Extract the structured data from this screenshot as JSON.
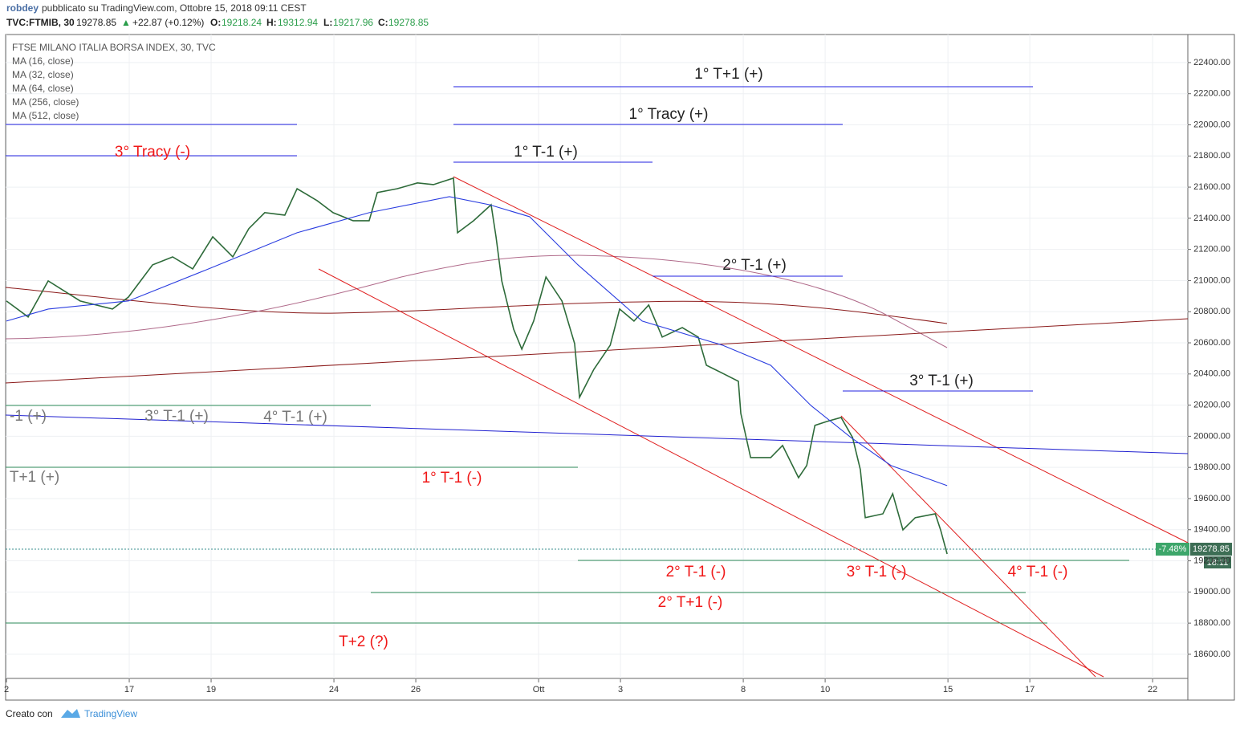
{
  "header": {
    "author": "robdey",
    "published": "pubblicato su TradingView.com, Ottobre 15, 2018 09:11 CEST",
    "symbol": "TVC:FTMIB, 30",
    "last": "19278.85",
    "arrow": "▲",
    "change": "+22.87 (+0.12%)",
    "o_label": "O:",
    "open": "19218.24",
    "h_label": "H:",
    "high": "19312.94",
    "l_label": "L:",
    "low": "19217.96",
    "c_label": "C:",
    "close": "19278.85"
  },
  "legend": {
    "title": "FTSE MILANO ITALIA BORSA INDEX, 30, TVC",
    "items": [
      "MA (16, close)",
      "MA (32, close)",
      "MA (64, close)",
      "MA (256, close)",
      "MA (512, close)"
    ]
  },
  "price_tag": {
    "price": "19278.85",
    "pct": "-7.48%",
    "countdown": "18:11"
  },
  "footer": {
    "made_with": "Creato con",
    "brand": "TradingView"
  },
  "chart_data": {
    "type": "line",
    "ylim": [
      18316,
      22580
    ],
    "yticks": [
      {
        "value": 18600,
        "label": "18600.00"
      },
      {
        "value": 18800,
        "label": "18800.00"
      },
      {
        "value": 19000,
        "label": "19000.00"
      },
      {
        "value": 19200,
        "label": "19200.00"
      },
      {
        "value": 19400,
        "label": "19400.00"
      },
      {
        "value": 19600,
        "label": "19600.00"
      },
      {
        "value": 19800,
        "label": "19800.00"
      },
      {
        "value": 20000,
        "label": "20000.00"
      },
      {
        "value": 20200,
        "label": "20200.00"
      },
      {
        "value": 20400,
        "label": "20400.00"
      },
      {
        "value": 20600,
        "label": "20600.00"
      },
      {
        "value": 20800,
        "label": "20800.00"
      },
      {
        "value": 21000,
        "label": "21000.00"
      },
      {
        "value": 21200,
        "label": "21200.00"
      },
      {
        "value": 21400,
        "label": "21400.00"
      },
      {
        "value": 21600,
        "label": "21600.00"
      },
      {
        "value": 21800,
        "label": "21800.00"
      },
      {
        "value": 22000,
        "label": "22000.00"
      },
      {
        "value": 22200,
        "label": "22200.00"
      },
      {
        "value": 22400,
        "label": "22400.00"
      }
    ],
    "xlim": [
      -0.02,
      28.86
    ],
    "xticks": [
      {
        "value": 0,
        "label": "2"
      },
      {
        "value": 3,
        "label": "17"
      },
      {
        "value": 5,
        "label": "19"
      },
      {
        "value": 8,
        "label": "24"
      },
      {
        "value": 10,
        "label": "26"
      },
      {
        "value": 13,
        "label": "Ott"
      },
      {
        "value": 15,
        "label": "3"
      },
      {
        "value": 18,
        "label": "8"
      },
      {
        "value": 20,
        "label": "10"
      },
      {
        "value": 23,
        "label": "15"
      },
      {
        "value": 25,
        "label": "17"
      },
      {
        "value": 28,
        "label": "22"
      }
    ],
    "series": [
      {
        "name": "FTMIB",
        "color": "#2e6b3a",
        "x": [
          0,
          0.53,
          1.02,
          1.8,
          2.59,
          2.98,
          3.57,
          4.06,
          4.55,
          5.04,
          5.53,
          5.92,
          6.31,
          6.8,
          7.1,
          7.59,
          7.98,
          8.47,
          8.86,
          9.06,
          9.55,
          10.04,
          10.43,
          10.92,
          11.02,
          11.41,
          11.84,
          11.96,
          12.1,
          12.39,
          12.59,
          12.88,
          13.18,
          13.57,
          13.88,
          14,
          14.35,
          14.75,
          14.98,
          15.33,
          15.69,
          16.02,
          16.51,
          16.9,
          17.1,
          17.49,
          17.88,
          17.94,
          18.18,
          18.67,
          18.96,
          19.35,
          19.55,
          19.75,
          20.04,
          20.39,
          20.67,
          20.86,
          20.98,
          21.41,
          21.65,
          21.9,
          22.2,
          22.69,
          22.82,
          22.98
        ],
        "values": [
          20869,
          20766,
          20998,
          20869,
          20817,
          20894,
          21101,
          21152,
          21075,
          21281,
          21152,
          21333,
          21436,
          21420,
          21590,
          21513,
          21436,
          21384,
          21384,
          21565,
          21590,
          21627,
          21616,
          21658,
          21307,
          21384,
          21487,
          21281,
          20998,
          20688,
          20559,
          20740,
          21023,
          20869,
          20595,
          20250,
          20430,
          20585,
          20817,
          20740,
          20843,
          20637,
          20698,
          20637,
          20456,
          20405,
          20353,
          20147,
          19863,
          19863,
          19941,
          19734,
          19812,
          20070,
          20095,
          20121,
          19992,
          19786,
          19477,
          19502,
          19631,
          19399,
          19477,
          19502,
          19399,
          19244
        ]
      },
      {
        "name": "MA (64, close)",
        "color": "#2a3de0",
        "x": [
          0,
          1.02,
          2.98,
          4.94,
          7.1,
          8.86,
          10.82,
          11.8,
          12.78,
          13.96,
          15.53,
          17.49,
          18.67,
          19.65,
          20.63,
          21.61,
          22.98
        ],
        "values": [
          20740,
          20817,
          20869,
          21075,
          21307,
          21436,
          21539,
          21487,
          21410,
          21101,
          20740,
          20585,
          20456,
          20198,
          19992,
          19812,
          19683
        ]
      }
    ]
  },
  "annotations": [
    {
      "text": "1° T+1 (+)",
      "color": "#222"
    },
    {
      "text": "1° Tracy (+)",
      "color": "#222"
    },
    {
      "text": "1° T-1 (+)",
      "color": "#222"
    },
    {
      "text": "3° Tracy (-)",
      "color": "#f01818"
    },
    {
      "text": "2° T-1 (+)",
      "color": "#222"
    },
    {
      "text": "3° T-1 (+)",
      "color": "#222"
    },
    {
      "text": "-1 (+)",
      "color": "#777"
    },
    {
      "text": "3° T-1 (+)",
      "color": "#777"
    },
    {
      "text": "4° T-1 (+)",
      "color": "#777"
    },
    {
      "text": "T+1 (+)",
      "color": "#777"
    },
    {
      "text": "1° T-1 (-)",
      "color": "#f01818"
    },
    {
      "text": "2° T-1 (-)",
      "color": "#f01818"
    },
    {
      "text": "3° T-1 (-)",
      "color": "#f01818"
    },
    {
      "text": "4° T-1 (-)",
      "color": "#f01818"
    },
    {
      "text": "2° T+1 (-)",
      "color": "#f01818"
    },
    {
      "text": "T+2 (?)",
      "color": "#f01818"
    }
  ]
}
